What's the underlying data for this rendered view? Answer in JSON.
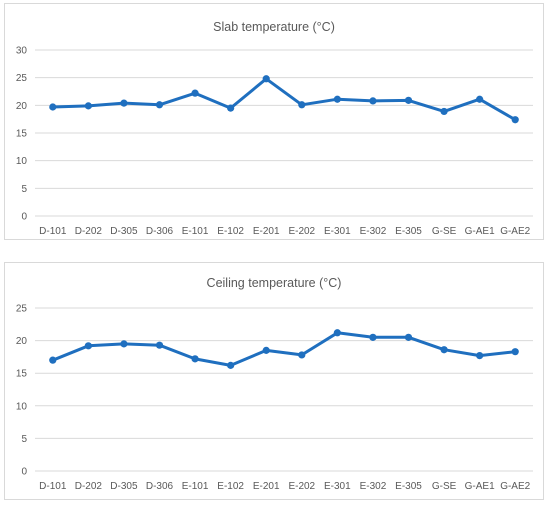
{
  "chart_data": [
    {
      "type": "line",
      "title": "Slab temperature (°C)",
      "xlabel": "",
      "ylabel": "",
      "categories": [
        "D-101",
        "D-202",
        "D-305",
        "D-306",
        "E-101",
        "E-102",
        "E-201",
        "E-202",
        "E-301",
        "E-302",
        "E-305",
        "G-SE",
        "G-AE1",
        "G-AE2"
      ],
      "values": [
        19.7,
        19.9,
        20.4,
        20.1,
        22.2,
        19.5,
        24.8,
        20.1,
        21.1,
        20.8,
        20.9,
        18.9,
        21.1,
        17.4
      ],
      "ylim": [
        0,
        30
      ],
      "yticks": [
        0,
        5,
        10,
        15,
        20,
        25,
        30
      ],
      "grid": true,
      "legend": "none",
      "color": "#1f6fbf"
    },
    {
      "type": "line",
      "title": "Ceiling temperature (°C)",
      "xlabel": "",
      "ylabel": "",
      "categories": [
        "D-101",
        "D-202",
        "D-305",
        "D-306",
        "E-101",
        "E-102",
        "E-201",
        "E-202",
        "E-301",
        "E-302",
        "E-305",
        "G-SE",
        "G-AE1",
        "G-AE2"
      ],
      "values": [
        17.0,
        19.2,
        19.5,
        19.3,
        17.2,
        16.2,
        18.5,
        17.8,
        21.2,
        20.5,
        20.5,
        18.6,
        17.7,
        18.3
      ],
      "ylim": [
        0,
        25
      ],
      "yticks": [
        0,
        5,
        10,
        15,
        20,
        25
      ],
      "grid": true,
      "legend": "none",
      "color": "#1f6fbf"
    }
  ]
}
